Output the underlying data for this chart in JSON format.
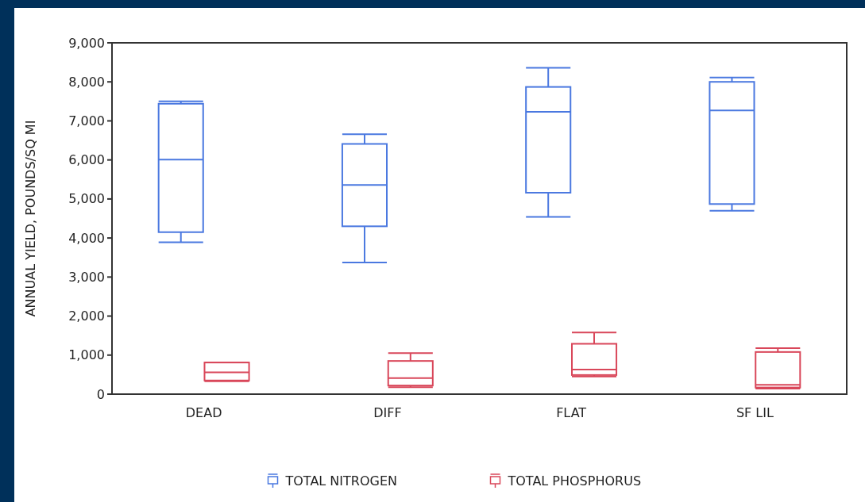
{
  "chart_data": {
    "type": "box",
    "ylabel": "ANNUAL YIELD, POUNDS/SQ MI",
    "categories": [
      "DEAD",
      "DIFF",
      "FLAT",
      "SF LIL"
    ],
    "ylim": [
      0,
      9000
    ],
    "yticks": [
      {
        "value": 0,
        "label": "0"
      },
      {
        "value": 1000,
        "label": "1,000"
      },
      {
        "value": 2000,
        "label": "2,000"
      },
      {
        "value": 3000,
        "label": "3,000"
      },
      {
        "value": 4000,
        "label": "4,000"
      },
      {
        "value": 5000,
        "label": "5,000"
      },
      {
        "value": 6000,
        "label": "6,000"
      },
      {
        "value": 7000,
        "label": "7,000"
      },
      {
        "value": 8000,
        "label": "8,000"
      },
      {
        "value": 9000,
        "label": "9,000"
      }
    ],
    "grid": false,
    "legend": "bottom",
    "series": [
      {
        "name": "TOTAL NITROGEN",
        "color": "#4a78e0",
        "boxes": [
          {
            "low": 3890,
            "q1": 4150,
            "median": 6010,
            "q3": 7440,
            "high": 7500
          },
          {
            "low": 3370,
            "q1": 4300,
            "median": 5360,
            "q3": 6410,
            "high": 6660
          },
          {
            "low": 4540,
            "q1": 5160,
            "median": 7230,
            "q3": 7870,
            "high": 8360
          },
          {
            "low": 4700,
            "q1": 4870,
            "median": 7270,
            "q3": 8000,
            "high": 8110
          }
        ]
      },
      {
        "name": "TOTAL PHOSPHORUS",
        "color": "#d9475a",
        "boxes": [
          {
            "low": 330,
            "q1": 350,
            "median": 560,
            "q3": 810,
            "high": 810
          },
          {
            "low": 180,
            "q1": 220,
            "median": 410,
            "q3": 850,
            "high": 1050
          },
          {
            "low": 450,
            "q1": 490,
            "median": 630,
            "q3": 1290,
            "high": 1580
          },
          {
            "low": 140,
            "q1": 170,
            "median": 240,
            "q3": 1080,
            "high": 1180
          }
        ]
      }
    ]
  }
}
